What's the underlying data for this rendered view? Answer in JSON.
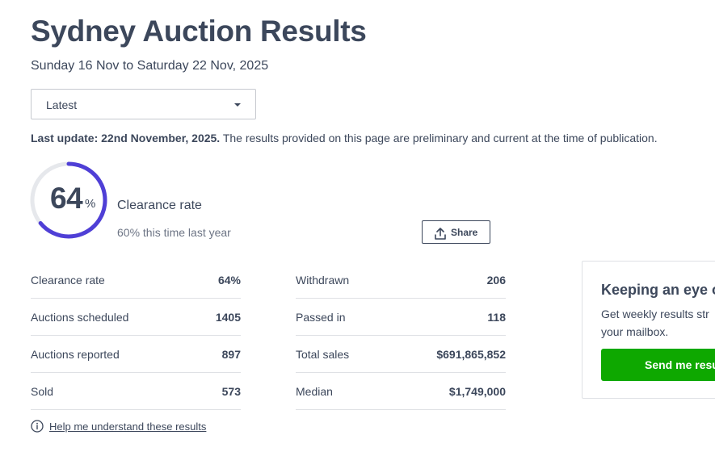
{
  "header": {
    "title": "Sydney Auction Results",
    "date_range": "Sunday 16 Nov to Saturday 22 Nov, 2025"
  },
  "filter": {
    "selected": "Latest"
  },
  "update": {
    "label": "Last update: 22nd November, 2025.",
    "note": "The results provided on this page are preliminary and current at the time of publication."
  },
  "summary": {
    "clearance_value": "64",
    "clearance_unit": "%",
    "clearance_fraction": 0.64,
    "clearance_label": "Clearance rate",
    "last_year": "60% this time last year",
    "share_label": "Share"
  },
  "stats_left": [
    {
      "label": "Clearance rate",
      "value": "64%"
    },
    {
      "label": "Auctions scheduled",
      "value": "1405"
    },
    {
      "label": "Auctions reported",
      "value": "897"
    },
    {
      "label": "Sold",
      "value": "573"
    }
  ],
  "stats_right": [
    {
      "label": "Withdrawn",
      "value": "206"
    },
    {
      "label": "Passed in",
      "value": "118"
    },
    {
      "label": "Total sales",
      "value": "$691,865,852"
    },
    {
      "label": "Median",
      "value": "$1,749,000"
    }
  ],
  "help": {
    "label": "Help me understand these results"
  },
  "promo": {
    "title": "Keeping an eye o",
    "desc_line1": "Get weekly results str",
    "desc_line2": "your mailbox.",
    "button": "Send me resu"
  },
  "colors": {
    "accent": "#4f3fd6",
    "track": "#e6e8ec",
    "text": "#3c475b",
    "button_green": "#0ea800"
  }
}
